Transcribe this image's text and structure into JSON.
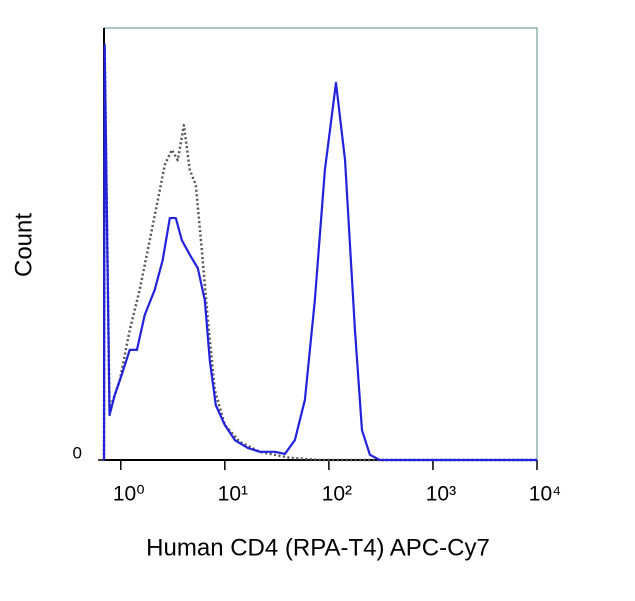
{
  "chart_data": {
    "type": "line",
    "xlabel": "Human CD4 (RPA-T4) APC-Cy7",
    "ylabel": "Count",
    "xscale": "log",
    "xlim": [
      0.69,
      10000
    ],
    "xticks": [
      {
        "value": 1,
        "label": "10⁰"
      },
      {
        "value": 10,
        "label": "10¹"
      },
      {
        "value": 100,
        "label": "10²"
      },
      {
        "value": 1000,
        "label": "10³"
      },
      {
        "value": 10000,
        "label": "10⁴"
      }
    ],
    "ylim": [
      0,
      100
    ],
    "yticks": [
      0
    ],
    "series": [
      {
        "color": "#555555",
        "dash": true,
        "x": [
          0.69,
          0.7,
          0.78,
          0.98,
          1.22,
          1.52,
          1.9,
          2.27,
          2.65,
          3.09,
          3.53,
          4.04,
          4.61,
          5.26,
          6.01,
          6.87,
          8.01,
          10,
          13.9,
          21.7,
          42.2,
          81.9,
          10000
        ],
        "values": [
          0,
          96,
          11.6,
          18.5,
          30.1,
          39.4,
          50.9,
          60.2,
          68.3,
          71.8,
          69.4,
          77.5,
          67.1,
          63.7,
          48.6,
          32.4,
          16.2,
          8.1,
          4.2,
          1.9,
          0.5,
          0,
          0
        ]
      },
      {
        "color": "#2222dd",
        "dash": false,
        "x": [
          0.69,
          0.7,
          0.78,
          0.875,
          1.02,
          1.22,
          1.43,
          1.7,
          2.12,
          2.53,
          2.96,
          3.38,
          3.86,
          4.61,
          5.5,
          6.42,
          7.17,
          8.19,
          10,
          12.5,
          16.6,
          21.7,
          30.3,
          37.8,
          47.1,
          58.8,
          73.3,
          91.5,
          117,
          143,
          178,
          208,
          248,
          309,
          10000
        ],
        "values": [
          0,
          96,
          10.4,
          15,
          19.7,
          25.5,
          25.5,
          33.6,
          39.4,
          46.3,
          56,
          56,
          50.9,
          47.5,
          44.4,
          37,
          23.1,
          12.7,
          8.1,
          4.6,
          2.8,
          1.9,
          1.9,
          1.4,
          4.6,
          13.9,
          37,
          67.1,
          87.3,
          69.4,
          30.1,
          6.9,
          1.2,
          0,
          0
        ]
      }
    ]
  }
}
